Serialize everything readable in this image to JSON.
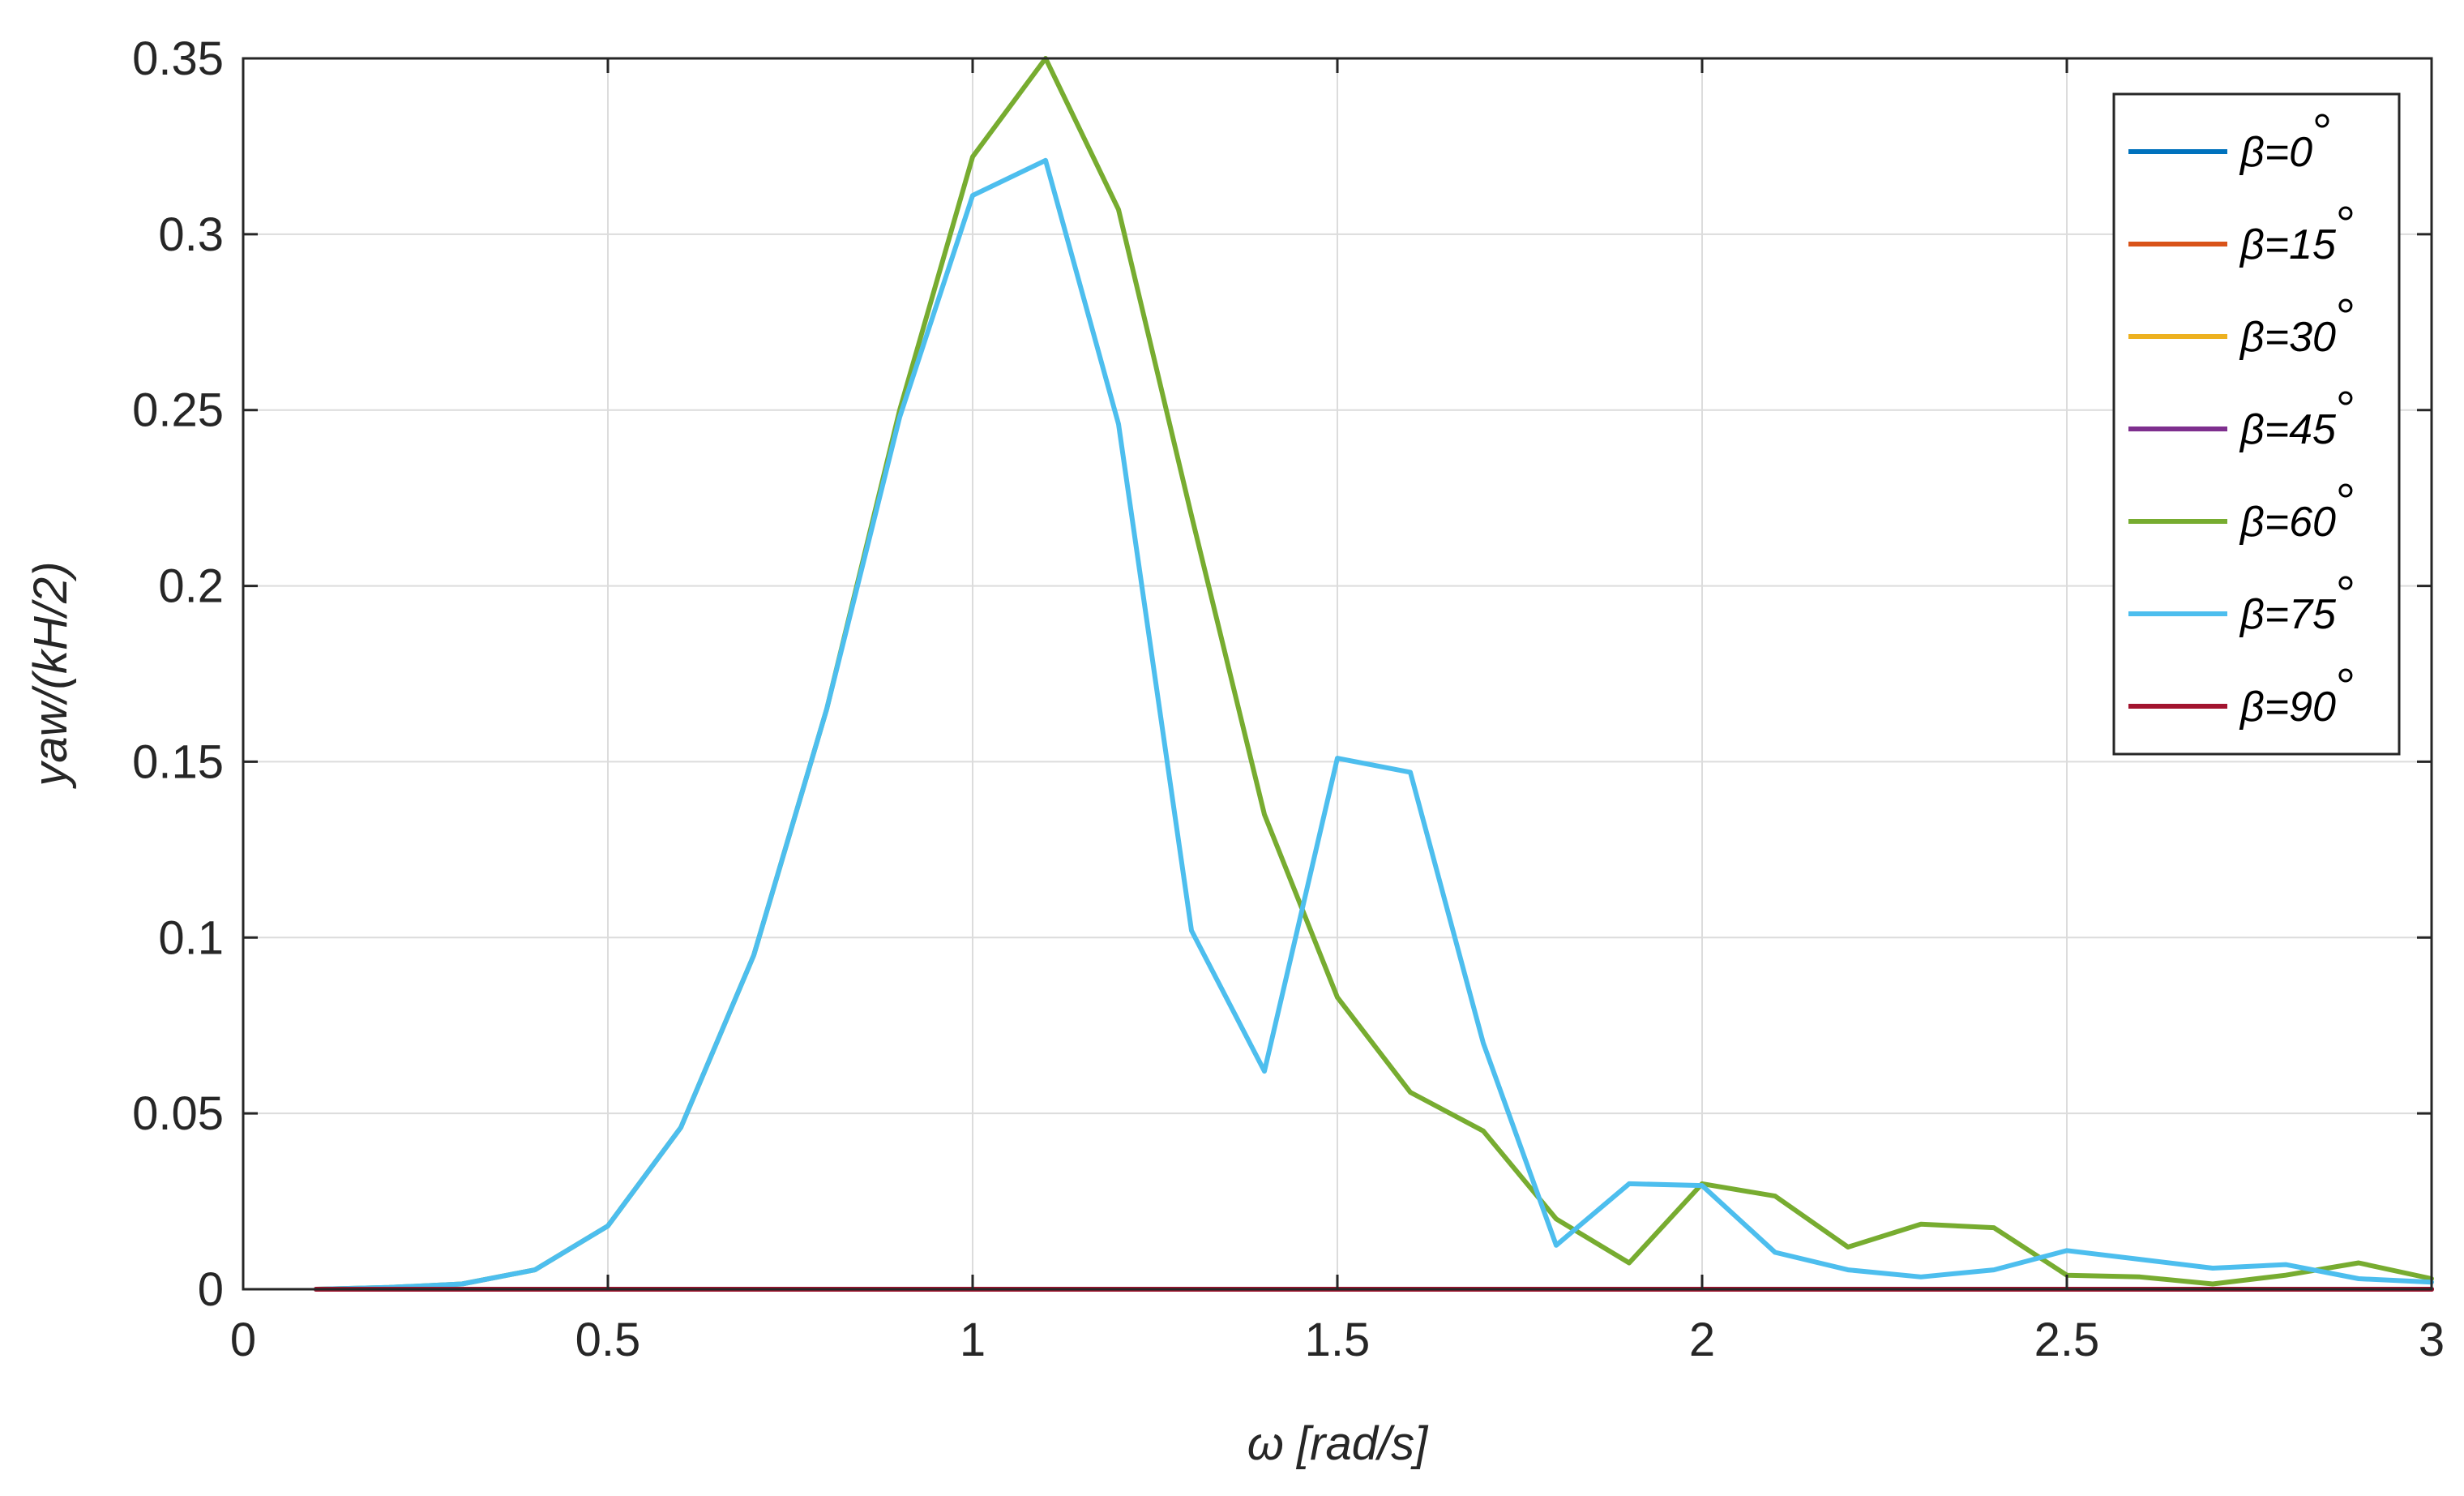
{
  "chart_data": {
    "type": "line",
    "xlabel": "ω [rad/s]",
    "ylabel": "yaw/(kH/2)",
    "xlim": [
      0,
      3
    ],
    "ylim": [
      0,
      0.35
    ],
    "xticks": [
      0,
      0.5,
      1,
      1.5,
      2,
      2.5,
      3
    ],
    "xtick_labels": [
      "0",
      "0.5",
      "1",
      "1.5",
      "2",
      "2.5",
      "3"
    ],
    "yticks": [
      0,
      0.05,
      0.1,
      0.15,
      0.2,
      0.25,
      0.3,
      0.35
    ],
    "ytick_labels": [
      "0",
      "0.05",
      "0.1",
      "0.15",
      "0.2",
      "0.25",
      "0.3",
      "0.35"
    ],
    "grid": true,
    "legend_position": "top-right",
    "x": [
      0.1,
      0.2,
      0.3,
      0.4,
      0.5,
      0.6,
      0.7,
      0.8,
      0.9,
      1.0,
      1.1,
      1.2,
      1.3,
      1.4,
      1.5,
      1.6,
      1.7,
      1.8,
      1.9,
      2.0,
      2.1,
      2.2,
      2.3,
      2.4,
      2.5,
      2.6,
      2.7,
      2.8,
      2.9,
      3.0
    ],
    "series": [
      {
        "name": "β=0",
        "color": "#0072BD",
        "values": [
          0,
          0,
          0,
          0,
          0,
          0,
          0,
          0,
          0,
          0,
          0,
          0,
          0,
          0,
          0,
          0,
          0,
          0,
          0,
          0,
          0,
          0,
          0,
          0,
          0,
          0,
          0,
          0,
          0,
          0
        ]
      },
      {
        "name": "β=15",
        "color": "#D95319",
        "values": [
          0,
          0,
          0,
          0,
          0,
          0,
          0,
          0,
          0,
          0,
          0,
          0,
          0,
          0,
          0,
          0,
          0,
          0,
          0,
          0,
          0,
          0,
          0,
          0,
          0,
          0,
          0,
          0,
          0,
          0
        ]
      },
      {
        "name": "β=30",
        "color": "#EDB120",
        "values": [
          0,
          0,
          0,
          0,
          0,
          0,
          0,
          0,
          0,
          0,
          0,
          0,
          0,
          0,
          0,
          0,
          0,
          0,
          0,
          0,
          0,
          0,
          0,
          0,
          0,
          0,
          0,
          0,
          0,
          0
        ]
      },
      {
        "name": "β=45",
        "color": "#7E2F8E",
        "values": [
          0,
          0,
          0,
          0,
          0,
          0,
          0,
          0,
          0,
          0,
          0,
          0,
          0,
          0,
          0,
          0,
          0,
          0,
          0,
          0,
          0,
          0,
          0,
          0,
          0,
          0,
          0,
          0,
          0,
          0
        ]
      },
      {
        "name": "β=60",
        "color": "#77AC30",
        "values": [
          0,
          0.0005,
          0.0015,
          0.0055,
          0.018,
          0.046,
          0.095,
          0.165,
          0.25,
          0.322,
          0.35,
          0.307,
          0.22,
          0.135,
          0.083,
          0.056,
          0.045,
          0.02,
          0.0075,
          0.03,
          0.0265,
          0.012,
          0.0185,
          0.0175,
          0.004,
          0.0035,
          0.0015,
          0.004,
          0.0075,
          0.003
        ]
      },
      {
        "name": "β=75",
        "color": "#4DBEEE",
        "values": [
          0,
          0.0005,
          0.0015,
          0.0055,
          0.018,
          0.046,
          0.095,
          0.165,
          0.248,
          0.311,
          0.321,
          0.246,
          0.102,
          0.062,
          0.151,
          0.147,
          0.07,
          0.0125,
          0.03,
          0.0295,
          0.0105,
          0.0055,
          0.0035,
          0.0055,
          0.011,
          0.0085,
          0.006,
          0.007,
          0.003,
          0.002
        ]
      },
      {
        "name": "β=90",
        "color": "#A2142F",
        "values": [
          0,
          0,
          0,
          0,
          0,
          0,
          0,
          0,
          0,
          0,
          0,
          0,
          0,
          0,
          0,
          0,
          0,
          0,
          0,
          0,
          0,
          0,
          0,
          0,
          0,
          0,
          0,
          0,
          0,
          0
        ]
      }
    ],
    "draw_order": [
      4,
      5,
      0,
      1,
      2,
      3,
      6
    ]
  }
}
